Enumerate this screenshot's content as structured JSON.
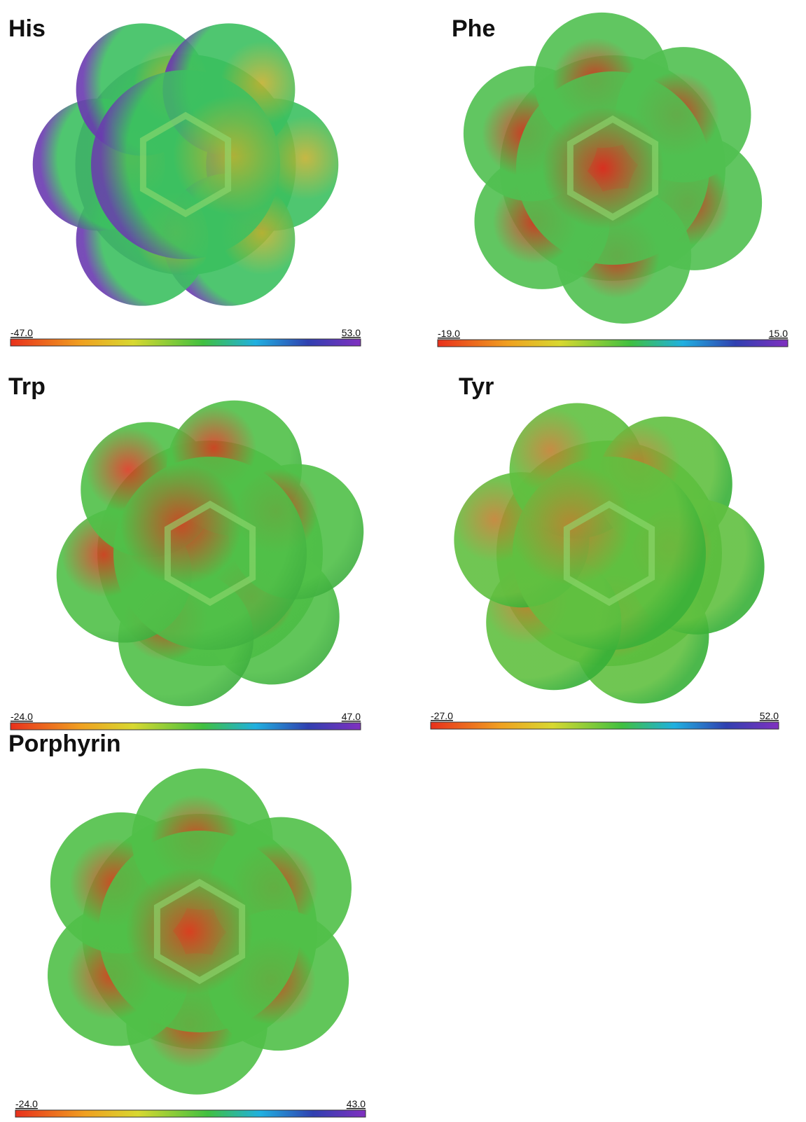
{
  "panels": [
    {
      "label": "His",
      "min": "-47.0",
      "max": "53.0"
    },
    {
      "label": "Phe",
      "min": "-19.0",
      "max": "15.0"
    },
    {
      "label": "Trp",
      "min": "-24.0",
      "max": "47.0"
    },
    {
      "label": "Tyr",
      "min": "-27.0",
      "max": "52.0"
    },
    {
      "label": "Porphyrin",
      "min": "-24.0",
      "max": "43.0"
    }
  ]
}
